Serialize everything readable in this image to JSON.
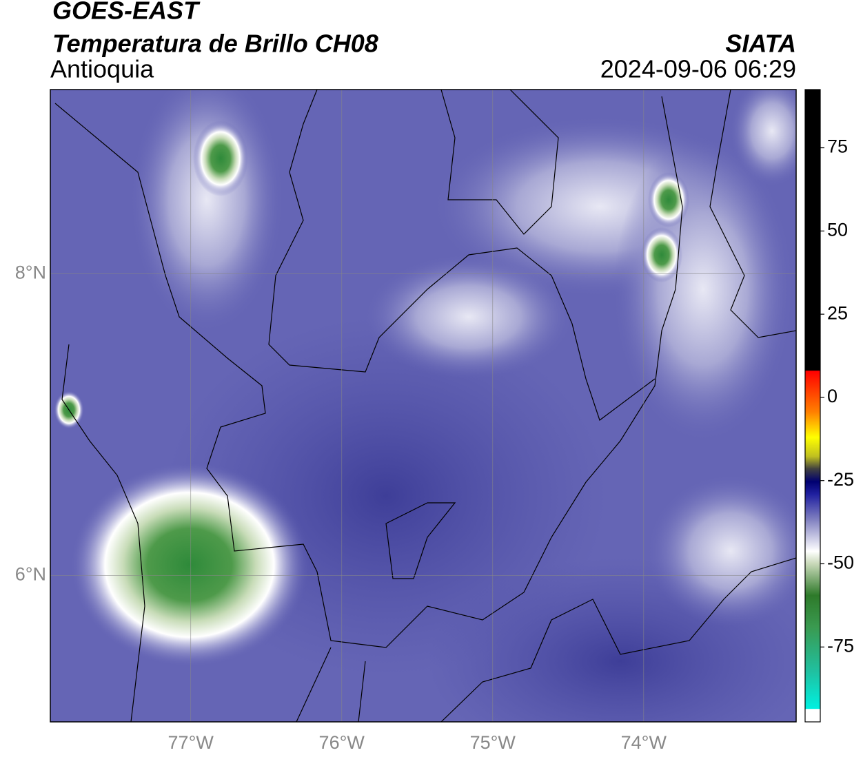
{
  "header": {
    "title": "GOES-EAST",
    "subtitle": "Temperatura de Brillo CH08",
    "region": "Antioquia",
    "source": "SIATA",
    "datetime": "2024-09-06 06:29"
  },
  "map": {
    "lonlim": [
      -77.93,
      -72.99
    ],
    "latlim": [
      5.03,
      9.22
    ],
    "lonticks": [
      {
        "value": -77,
        "label": "77°W"
      },
      {
        "value": -76,
        "label": "76°W"
      },
      {
        "value": -75,
        "label": "75°W"
      },
      {
        "value": -74,
        "label": "74°W"
      }
    ],
    "latticks": [
      {
        "value": 8,
        "label": "8°N"
      },
      {
        "value": 6,
        "label": "6°N"
      }
    ],
    "grid": true
  },
  "colorbar": {
    "lim": [
      -97.5,
      92.5
    ],
    "ticks": [
      75,
      50,
      25,
      0,
      -25,
      -50,
      -75
    ]
  }
}
